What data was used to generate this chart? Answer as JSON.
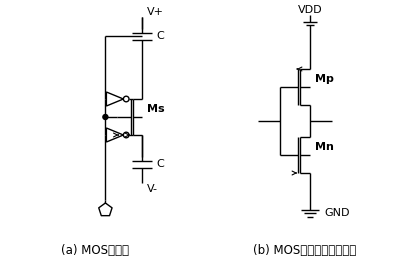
{
  "title_a": "(a) MOS开关管",
  "title_b": "(b) MOS开关管中的反相器",
  "label_vplus": "V+",
  "label_vminus": "V-",
  "label_vdd": "VDD",
  "label_gnd": "GND",
  "label_C": "C",
  "label_Ms": "Ms",
  "label_Mp": "Mp",
  "label_Mn": "Mn",
  "line_color": "#000000",
  "bg_color": "#ffffff",
  "font_size_label": 8,
  "font_size_title": 8.5
}
